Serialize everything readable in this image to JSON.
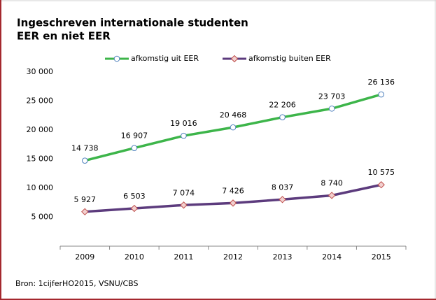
{
  "chart_data": {
    "type": "line",
    "title": "Ingeschreven internationale studenten",
    "subtitle": "EER en niet EER",
    "categories": [
      "2009",
      "2010",
      "2011",
      "2012",
      "2013",
      "2014",
      "2015"
    ],
    "series": [
      {
        "name": "afkomstig uit EER",
        "color": "#3db54a",
        "marker": "circle",
        "marker_color": "#4f81bd",
        "values": [
          14738,
          16907,
          19016,
          20468,
          22206,
          23703,
          26136
        ],
        "value_labels": [
          "14 738",
          "16 907",
          "19 016",
          "20 468",
          "22 206",
          "23 703",
          "26 136"
        ]
      },
      {
        "name": "afkomstig buiten EER",
        "color": "#5c3b7d",
        "marker": "diamond",
        "marker_color": "#c0504d",
        "values": [
          5927,
          6503,
          7074,
          7426,
          8037,
          8740,
          10575
        ],
        "value_labels": [
          "5 927",
          "6 503",
          "7 074",
          "7 426",
          "8 037",
          "8 740",
          "10 575"
        ]
      }
    ],
    "ylim": [
      0,
      30000
    ],
    "yticks": [
      {
        "value": 5000,
        "label": "5 000"
      },
      {
        "value": 10000,
        "label": "10 000"
      },
      {
        "value": 15000,
        "label": "15 000"
      },
      {
        "value": 20000,
        "label": "20 000"
      },
      {
        "value": 25000,
        "label": "25 000"
      },
      {
        "value": 30000,
        "label": "30 000"
      }
    ],
    "grid": false,
    "legend": "top",
    "source": "Bron: 1cijferHO2015, VSNU/CBS"
  }
}
